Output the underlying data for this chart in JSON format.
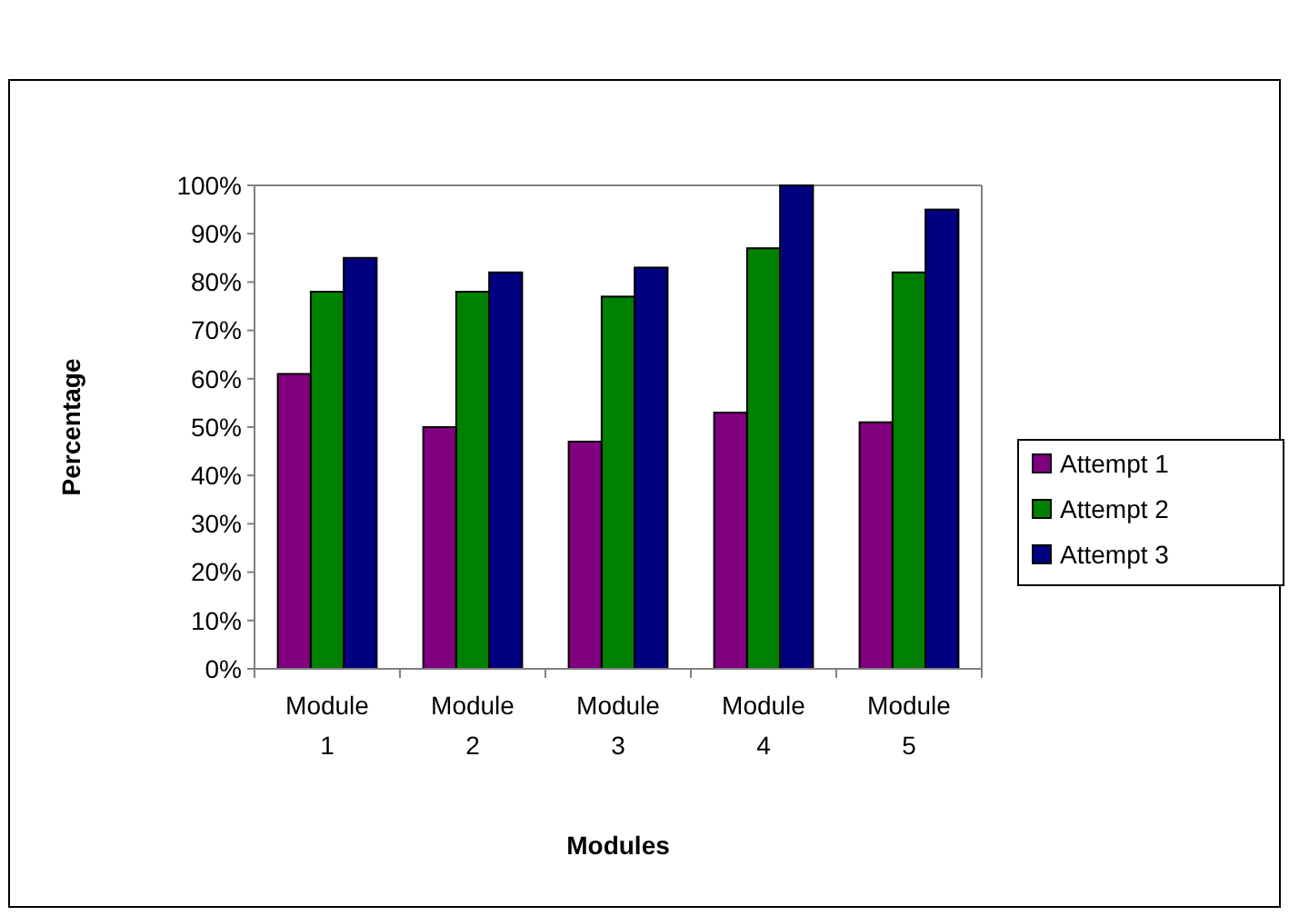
{
  "chart_data": {
    "type": "bar",
    "xlabel": "Modules",
    "ylabel": "Percentage",
    "categories": [
      "Module 1",
      "Module 2",
      "Module 3",
      "Module 4",
      "Module 5"
    ],
    "series": [
      {
        "name": "Attempt 1",
        "color": "#800080",
        "values": [
          61,
          50,
          47,
          53,
          51
        ]
      },
      {
        "name": "Attempt 2",
        "color": "#008000",
        "values": [
          78,
          78,
          77,
          87,
          82
        ]
      },
      {
        "name": "Attempt 3",
        "color": "#000080",
        "values": [
          85,
          82,
          83,
          100,
          95
        ]
      }
    ],
    "ylim": [
      0,
      100
    ],
    "yticks": [
      {
        "value": 0,
        "label": "0%"
      },
      {
        "value": 10,
        "label": "10%"
      },
      {
        "value": 20,
        "label": "20%"
      },
      {
        "value": 30,
        "label": "30%"
      },
      {
        "value": 40,
        "label": "40%"
      },
      {
        "value": 50,
        "label": "50%"
      },
      {
        "value": 60,
        "label": "60%"
      },
      {
        "value": 70,
        "label": "70%"
      },
      {
        "value": 80,
        "label": "80%"
      },
      {
        "value": 90,
        "label": "90%"
      },
      {
        "value": 100,
        "label": "100%"
      }
    ],
    "legend": "right"
  }
}
